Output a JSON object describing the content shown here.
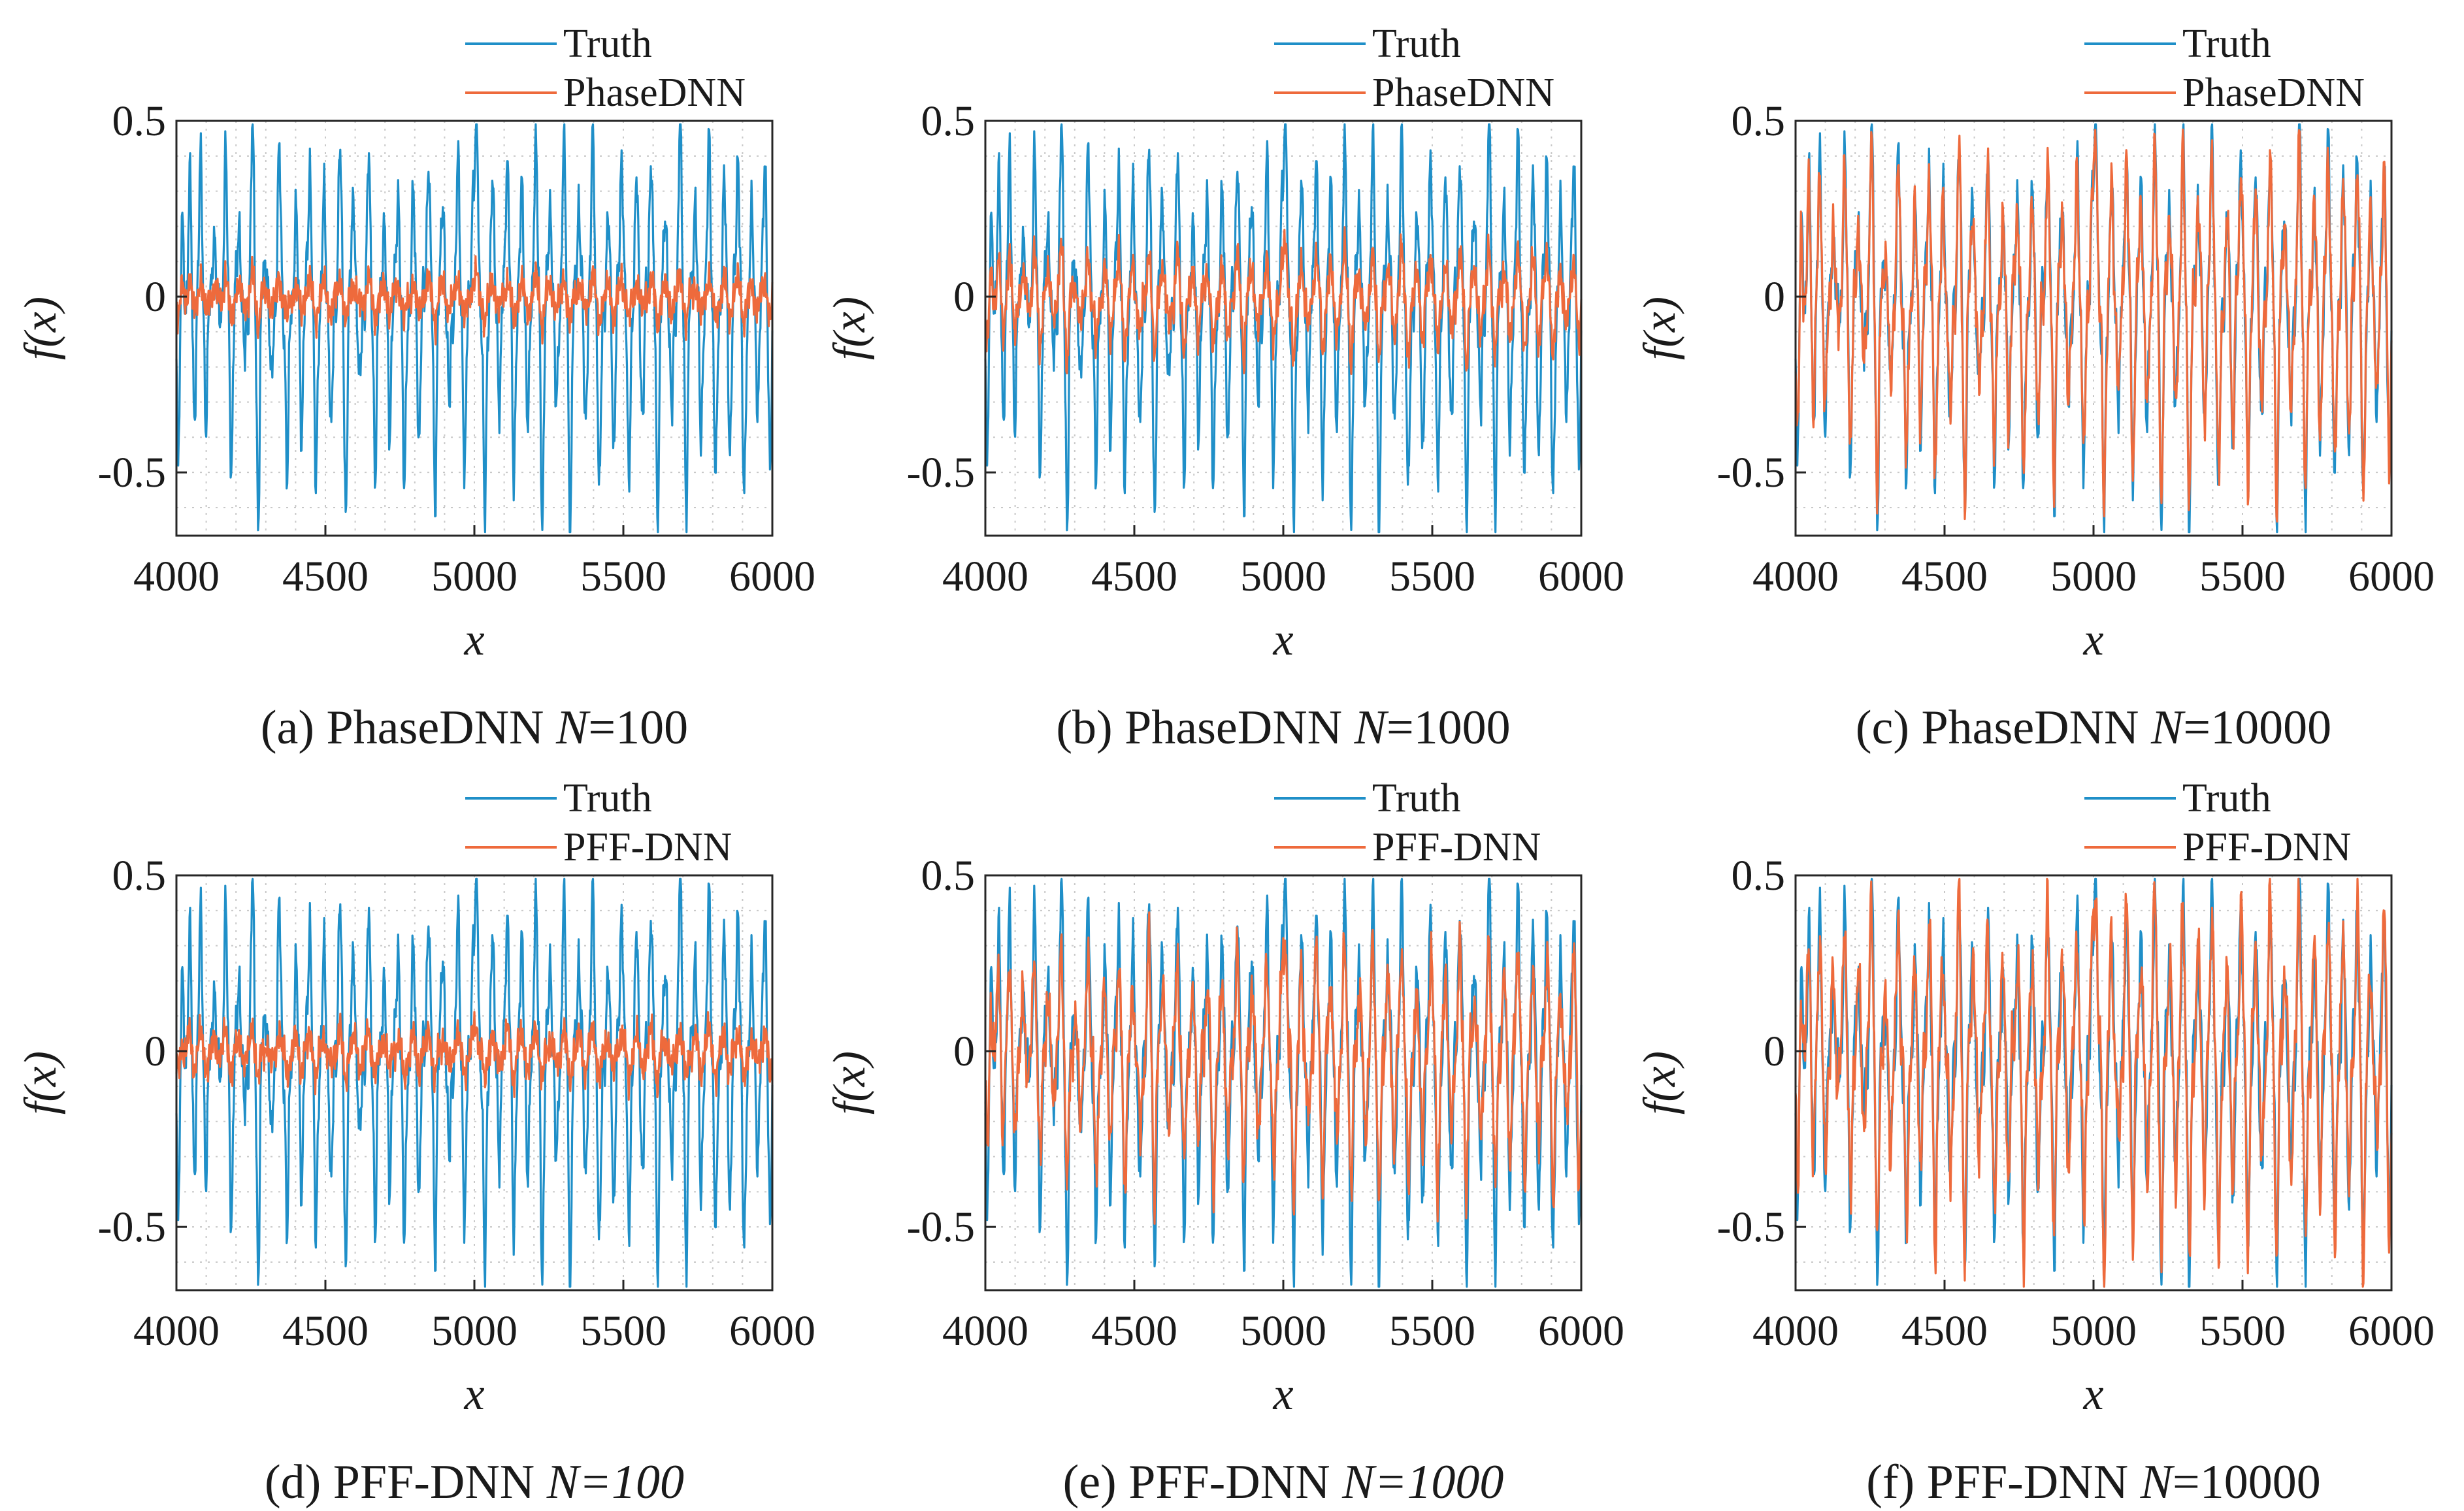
{
  "figure": {
    "panels": [
      {
        "caption_letter": "(a)",
        "caption_method": "PhaseDNN",
        "caption_n_var": "N",
        "caption_n_value": "=100",
        "n_value_italic": false
      },
      {
        "caption_letter": "(b)",
        "caption_method": "PhaseDNN",
        "caption_n_var": "N",
        "caption_n_value": "=1000",
        "n_value_italic": false
      },
      {
        "caption_letter": "(c)",
        "caption_method": "PhaseDNN",
        "caption_n_var": "N",
        "caption_n_value": "=10000",
        "n_value_italic": false
      },
      {
        "caption_letter": "(d)",
        "caption_method": "PFF-DNN",
        "caption_n_var": "N",
        "caption_n_value": "=100",
        "n_value_italic": true
      },
      {
        "caption_letter": "(e)",
        "caption_method": "PFF-DNN",
        "caption_n_var": "N",
        "caption_n_value": "=1000",
        "n_value_italic": true
      },
      {
        "caption_letter": "(f)",
        "caption_method": "PFF-DNN",
        "caption_n_var": "N",
        "caption_n_value": "=10000",
        "n_value_italic": false
      }
    ]
  },
  "chart_data": [
    {
      "type": "line",
      "xlabel": "x",
      "ylabel": "f(x)",
      "xlim": [
        4000,
        6000
      ],
      "ylim": [
        -0.68,
        0.5
      ],
      "xticks": [
        "4000",
        "4500",
        "5000",
        "5500",
        "6000"
      ],
      "yticks": [
        "0.5",
        "0",
        "-0.5"
      ],
      "ytick_values": [
        0.5,
        0,
        -0.5
      ],
      "grid": "dotted",
      "legend_position": "top-right",
      "series": [
        {
          "name": "Truth",
          "color": "#1f8fc8",
          "curve": "truth"
        },
        {
          "name": "PhaseDNN",
          "color": "#ee6a3c",
          "curve": "approx",
          "amplitude": 0.13
        }
      ]
    },
    {
      "type": "line",
      "xlabel": "x",
      "ylabel": "f(x)",
      "xlim": [
        4000,
        6000
      ],
      "ylim": [
        -0.68,
        0.5
      ],
      "xticks": [
        "4000",
        "4500",
        "5000",
        "5500",
        "6000"
      ],
      "yticks": [
        "0.5",
        "0",
        "-0.5"
      ],
      "ytick_values": [
        0.5,
        0,
        -0.5
      ],
      "grid": "dotted",
      "legend_position": "top-right",
      "series": [
        {
          "name": "Truth",
          "color": "#1f8fc8",
          "curve": "truth"
        },
        {
          "name": "PhaseDNN",
          "color": "#ee6a3c",
          "curve": "approx",
          "amplitude": 0.3
        }
      ]
    },
    {
      "type": "line",
      "xlabel": "x",
      "ylabel": "f(x)",
      "xlim": [
        4000,
        6000
      ],
      "ylim": [
        -0.68,
        0.5
      ],
      "xticks": [
        "4000",
        "4500",
        "5000",
        "5500",
        "6000"
      ],
      "yticks": [
        "0.5",
        "0",
        "-0.5"
      ],
      "ytick_values": [
        0.5,
        0,
        -0.5
      ],
      "grid": "dotted",
      "legend_position": "top-right",
      "series": [
        {
          "name": "Truth",
          "color": "#1f8fc8",
          "curve": "truth"
        },
        {
          "name": "PhaseDNN",
          "color": "#ee6a3c",
          "curve": "approx",
          "amplitude": 0.95
        }
      ]
    },
    {
      "type": "line",
      "xlabel": "x",
      "ylabel": "f(x)",
      "xlim": [
        4000,
        6000
      ],
      "ylim": [
        -0.68,
        0.5
      ],
      "xticks": [
        "4000",
        "4500",
        "5000",
        "5500",
        "6000"
      ],
      "yticks": [
        "0.5",
        "0",
        "-0.5"
      ],
      "ytick_values": [
        0.5,
        0,
        -0.5
      ],
      "grid": "dotted",
      "legend_position": "top-right",
      "series": [
        {
          "name": "Truth",
          "color": "#1f8fc8",
          "curve": "truth"
        },
        {
          "name": "PFF-DNN",
          "color": "#ee6a3c",
          "curve": "approx",
          "amplitude": 0.15
        }
      ]
    },
    {
      "type": "line",
      "xlabel": "x",
      "ylabel": "f(x)",
      "xlim": [
        4000,
        6000
      ],
      "ylim": [
        -0.68,
        0.5
      ],
      "xticks": [
        "4000",
        "4500",
        "5000",
        "5500",
        "6000"
      ],
      "yticks": [
        "0.5",
        "0",
        "-0.5"
      ],
      "ytick_values": [
        0.5,
        0,
        -0.5
      ],
      "grid": "dotted",
      "legend_position": "top-right",
      "series": [
        {
          "name": "Truth",
          "color": "#1f8fc8",
          "curve": "truth"
        },
        {
          "name": "PFF-DNN",
          "color": "#ee6a3c",
          "curve": "approx",
          "amplitude": 0.7
        }
      ]
    },
    {
      "type": "line",
      "xlabel": "x",
      "ylabel": "f(x)",
      "xlim": [
        4000,
        6000
      ],
      "ylim": [
        -0.68,
        0.5
      ],
      "xticks": [
        "4000",
        "4500",
        "5000",
        "5500",
        "6000"
      ],
      "yticks": [
        "0.5",
        "0",
        "-0.5"
      ],
      "ytick_values": [
        0.5,
        0,
        -0.5
      ],
      "grid": "dotted",
      "legend_position": "top-right",
      "series": [
        {
          "name": "Truth",
          "color": "#1f8fc8",
          "curve": "truth"
        },
        {
          "name": "PFF-DNN",
          "color": "#ee6a3c",
          "curve": "approx",
          "amplitude": 1.0
        }
      ]
    }
  ]
}
